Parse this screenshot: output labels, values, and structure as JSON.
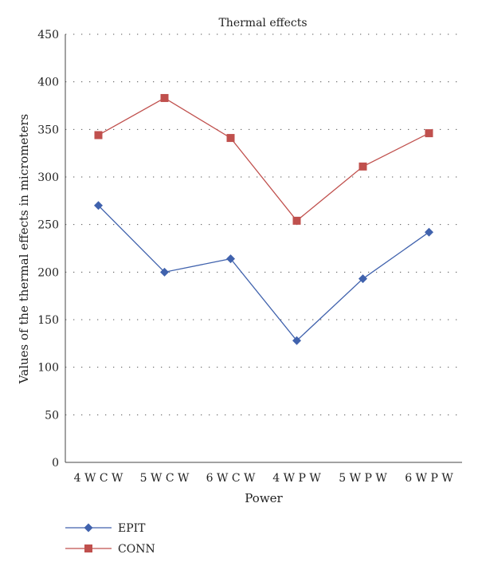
{
  "chart_data": {
    "type": "line",
    "title": "Thermal effects",
    "xlabel": "Power",
    "ylabel": "Values of the thermal effects in micrometers",
    "categories": [
      "4 W C W",
      "5 W C W",
      "6 W C W",
      "4 W P W",
      "5 W P W",
      "6 W P W"
    ],
    "ylim": [
      0,
      450
    ],
    "yticks": [
      0,
      50,
      100,
      150,
      200,
      250,
      300,
      350,
      400,
      450
    ],
    "grid": true,
    "legend_position": "bottom-left",
    "series": [
      {
        "name": "EPIT",
        "values": [
          270,
          200,
          214,
          128,
          193,
          242
        ],
        "color": "#4062ad",
        "marker": "diamond"
      },
      {
        "name": "CONN",
        "values": [
          344,
          383,
          341,
          254,
          311,
          346
        ],
        "color": "#c0504d",
        "marker": "square"
      }
    ]
  }
}
